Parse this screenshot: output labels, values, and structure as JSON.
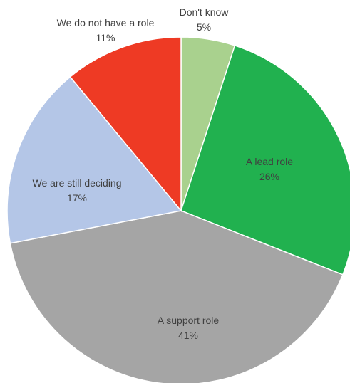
{
  "chart_data": {
    "type": "pie",
    "title": "",
    "slices": [
      {
        "label": "Don't know",
        "value": 5,
        "value_label": "5%",
        "color": "#a9d18e"
      },
      {
        "label": "A lead role",
        "value": 26,
        "value_label": "26%",
        "color": "#21b14f"
      },
      {
        "label": "A support role",
        "value": 41,
        "value_label": "41%",
        "color": "#a5a5a5"
      },
      {
        "label": "We are still deciding",
        "value": 17,
        "value_label": "17%",
        "color": "#b4c6e7"
      },
      {
        "label": "We do not have a role",
        "value": 11,
        "value_label": "11%",
        "color": "#ee3a24"
      }
    ],
    "start_angle": "12 o'clock",
    "direction": "clockwise",
    "legend": "none"
  }
}
